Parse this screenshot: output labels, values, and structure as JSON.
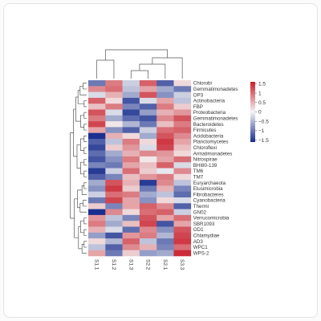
{
  "chart_data": {
    "type": "heatmap",
    "title": "",
    "columns": [
      "S1.1",
      "S1.2",
      "S1.3",
      "S2.2",
      "S2.1",
      "S3.3"
    ],
    "rows": [
      "Chlorobi",
      "Gemmatimonadetes",
      "OP3",
      "Actinobacteria",
      "FBP",
      "Proteobacteria",
      "Gemmatimonadetes",
      "Bacteroidetes",
      "Firmicutes",
      "Acidobacteria",
      "Planctomycetes",
      "Chloroflexi",
      "Armatimonadetes",
      "Nitrospirae",
      "BHI80-139",
      "TM6",
      "TM7",
      "Euryarchaeota",
      "Elusimicrobia",
      "Fibrobacteres",
      "Cyanobacteria",
      "Thermi",
      "GN02",
      "Verrucomicrobia",
      "SBR1093",
      "OD1",
      "Chlamydiae",
      "AD3",
      "WPC1",
      "WPS-2"
    ],
    "values": [
      [
        -1.0,
        0.9,
        -0.3,
        1.1,
        -1.2,
        0.2
      ],
      [
        0.8,
        1.0,
        -0.4,
        0.6,
        -0.6,
        -1.0
      ],
      [
        -0.2,
        0.5,
        -0.6,
        1.2,
        -0.8,
        -0.3
      ],
      [
        1.1,
        0.2,
        -1.3,
        -0.2,
        0.6,
        -0.4
      ],
      [
        0.4,
        0.9,
        -0.9,
        -1.2,
        0.9,
        0.3
      ],
      [
        1.2,
        -0.2,
        -1.4,
        -0.7,
        0.5,
        0.7
      ],
      [
        0.9,
        -0.6,
        -1.1,
        -1.3,
        0.8,
        1.2
      ],
      [
        1.3,
        0.1,
        -0.5,
        -1.0,
        0.4,
        0.9
      ],
      [
        0.6,
        -0.8,
        -1.2,
        -0.3,
        1.0,
        1.1
      ],
      [
        -1.6,
        0.5,
        0.2,
        -0.6,
        1.2,
        0.8
      ],
      [
        -1.2,
        -0.4,
        0.9,
        0.2,
        1.4,
        0.6
      ],
      [
        -1.4,
        0.3,
        0.7,
        -0.2,
        1.3,
        0.4
      ],
      [
        -1.1,
        -0.6,
        0.5,
        0.8,
        0.7,
        0.2
      ],
      [
        -1.3,
        -0.8,
        0.9,
        0.1,
        0.6,
        1.0
      ],
      [
        -0.9,
        -1.0,
        0.6,
        0.4,
        1.1,
        -0.2
      ],
      [
        -1.5,
        -0.3,
        1.0,
        0.3,
        -0.1,
        0.8
      ],
      [
        -1.2,
        -0.9,
        0.4,
        0.7,
        0.9,
        0.2
      ],
      [
        -0.6,
        1.2,
        0.5,
        -1.5,
        0.8,
        -0.4
      ],
      [
        -0.8,
        1.4,
        0.3,
        -1.0,
        0.5,
        -0.9
      ],
      [
        -0.3,
        1.0,
        0.9,
        -0.6,
        -0.4,
        -1.1
      ],
      [
        -1.0,
        1.3,
        0.6,
        -0.8,
        0.2,
        -0.2
      ],
      [
        0.3,
        -0.9,
        0.6,
        1.1,
        0.8,
        -1.2
      ],
      [
        -1.6,
        0.8,
        0.2,
        1.0,
        1.1,
        -0.3
      ],
      [
        0.7,
        -0.4,
        -0.9,
        1.2,
        0.6,
        1.0
      ],
      [
        0.9,
        -0.6,
        0.4,
        1.3,
        -1.3,
        0.6
      ],
      [
        0.5,
        -0.2,
        -1.1,
        0.8,
        -0.8,
        1.2
      ],
      [
        -0.7,
        -1.3,
        0.7,
        0.9,
        -0.5,
        1.3
      ],
      [
        0.2,
        -0.5,
        1.1,
        -0.4,
        -1.0,
        1.4
      ],
      [
        -0.4,
        -1.2,
        0.8,
        0.5,
        -0.9,
        1.0
      ],
      [
        0.6,
        -1.0,
        0.3,
        -0.7,
        -0.6,
        1.5
      ]
    ],
    "color_scale": {
      "ticks": [
        1.5,
        1,
        0.5,
        0,
        -0.5,
        -1,
        -1.5
      ],
      "min": -1.6,
      "max": 1.6,
      "low_color": "#1a2f8f",
      "mid_color": "#f4f4f4",
      "high_color": "#c81e2a"
    },
    "dendrograms": {
      "row": true,
      "column": true
    }
  }
}
